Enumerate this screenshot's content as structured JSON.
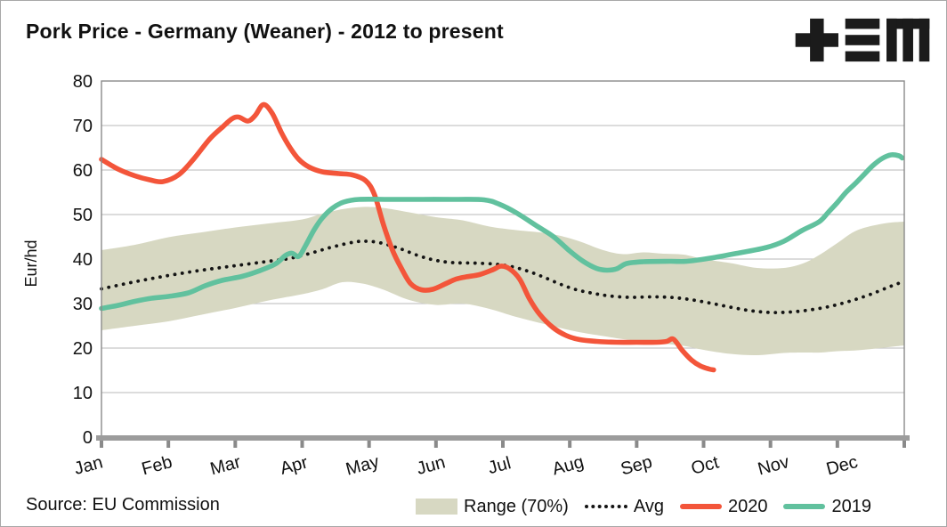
{
  "header": {
    "title": "Pork Price - Germany (Weaner) - 2012 to present",
    "logo_name": "tem-logo"
  },
  "source": {
    "label": "Source: EU Commission"
  },
  "colors": {
    "range_band": "#D7D8C2",
    "avg_line": "#141414",
    "line_2020": "#F3553A",
    "line_2019": "#61C19E",
    "gridline": "#C6C6C6",
    "plot_border": "#8A8A8A",
    "axis_bar": "#9C9C9C",
    "text": "#111111"
  },
  "legend": [
    {
      "label": "Range (70%)",
      "type": "band"
    },
    {
      "label": "Avg",
      "type": "dotted"
    },
    {
      "label": "2020",
      "type": "line"
    },
    {
      "label": "2019",
      "type": "line"
    }
  ],
  "chart_data": {
    "type": "line",
    "title": "Pork Price - Germany (Weaner) - 2012 to present",
    "xlabel": "",
    "ylabel": "Eur/hd",
    "ylim": [
      0,
      80
    ],
    "yticks": [
      0,
      10,
      20,
      30,
      40,
      50,
      60,
      70,
      80
    ],
    "grid": "horizontal",
    "legend_position": "bottom",
    "x_unit": "months, 0 = Jan 1 and 12 = Dec 31",
    "months": [
      "Jan",
      "Feb",
      "Mar",
      "Apr",
      "May",
      "Jun",
      "Jul",
      "Aug",
      "Sep",
      "Oct",
      "Nov",
      "Dec"
    ],
    "band_70pct": {
      "name": "Range (70%)",
      "x": [
        0,
        0.5,
        1.0,
        1.5,
        2.0,
        2.5,
        3.0,
        3.3,
        3.6,
        3.9,
        4.2,
        4.6,
        5.0,
        5.4,
        5.8,
        6.2,
        6.7,
        7.1,
        7.5,
        7.8,
        8.1,
        8.4,
        8.7,
        9.0,
        9.4,
        9.8,
        10.2,
        10.5,
        10.75,
        11.0,
        11.3,
        11.7,
        12.0
      ],
      "upper": [
        42.0,
        43.2,
        44.9,
        46.0,
        47.1,
        48.0,
        48.9,
        50.2,
        51.2,
        51.7,
        51.5,
        50.5,
        49.4,
        48.7,
        47.3,
        46.5,
        45.7,
        44.2,
        42.0,
        41.1,
        41.5,
        41.2,
        41.0,
        40.0,
        39.1,
        38.0,
        38.0,
        39.1,
        41.1,
        43.6,
        46.5,
        48.0,
        48.4
      ],
      "lower": [
        24.0,
        25.0,
        26.0,
        27.5,
        29.0,
        30.7,
        32.1,
        33.2,
        34.8,
        34.5,
        33.2,
        30.8,
        29.7,
        30.0,
        28.8,
        27.0,
        25.1,
        23.7,
        22.7,
        22.0,
        21.5,
        21.0,
        20.5,
        19.6,
        18.7,
        18.4,
        18.9,
        19.0,
        19.0,
        19.3,
        19.5,
        20.1,
        20.6
      ]
    },
    "series": [
      {
        "name": "Avg",
        "style": "dotted",
        "x": [
          0,
          0.5,
          1.0,
          1.5,
          2.0,
          2.5,
          2.8,
          3.1,
          3.4,
          3.7,
          3.9,
          4.15,
          4.45,
          4.75,
          5.0,
          5.25,
          5.55,
          5.85,
          6.1,
          6.35,
          6.6,
          6.85,
          7.1,
          7.35,
          7.6,
          7.9,
          8.2,
          8.5,
          8.8,
          9.1,
          9.4,
          9.7,
          10.0,
          10.3,
          10.6,
          10.9,
          11.2,
          11.5,
          11.8,
          12.0
        ],
        "y": [
          33.3,
          34.9,
          36.3,
          37.5,
          38.5,
          39.5,
          40.1,
          41.2,
          42.5,
          43.6,
          44.0,
          43.7,
          42.4,
          40.7,
          39.7,
          39.2,
          39.1,
          38.9,
          38.4,
          37.4,
          36.0,
          34.4,
          33.1,
          32.3,
          31.7,
          31.4,
          31.5,
          31.4,
          30.9,
          30.1,
          29.2,
          28.4,
          28.0,
          28.1,
          28.6,
          29.4,
          30.6,
          32.1,
          33.9,
          35.0
        ]
      },
      {
        "name": "2020",
        "style": "solid",
        "x": [
          0,
          0.25,
          0.5,
          0.72,
          0.92,
          1.16,
          1.38,
          1.62,
          1.82,
          1.95,
          2.05,
          2.19,
          2.3,
          2.42,
          2.55,
          2.69,
          2.82,
          2.95,
          3.1,
          3.3,
          3.55,
          3.75,
          3.95,
          4.08,
          4.22,
          4.35,
          4.48,
          4.62,
          4.78,
          4.95,
          5.15,
          5.3,
          5.45,
          5.65,
          5.85,
          5.97,
          6.1,
          6.25,
          6.4,
          6.55,
          6.75,
          6.95,
          7.15,
          7.4,
          7.7,
          8.0,
          8.3,
          8.45,
          8.55,
          8.68,
          8.82,
          8.95,
          9.08,
          9.15
        ],
        "y": [
          62.4,
          60.2,
          58.7,
          57.8,
          57.4,
          59.0,
          62.5,
          67.0,
          69.8,
          71.5,
          71.9,
          71.0,
          72.3,
          74.7,
          72.8,
          68.4,
          65.0,
          62.4,
          60.7,
          59.6,
          59.2,
          58.9,
          57.6,
          54.5,
          47.5,
          42.0,
          38.0,
          34.5,
          33.1,
          33.2,
          34.5,
          35.5,
          36.0,
          36.5,
          37.6,
          38.4,
          37.8,
          35.5,
          31.0,
          27.6,
          24.6,
          22.8,
          21.9,
          21.5,
          21.3,
          21.3,
          21.3,
          21.5,
          22.0,
          19.5,
          17.3,
          16.0,
          15.3,
          15.1
        ]
      },
      {
        "name": "2019",
        "style": "solid",
        "x": [
          0,
          0.25,
          0.5,
          0.75,
          1.0,
          1.3,
          1.55,
          1.8,
          2.1,
          2.35,
          2.6,
          2.75,
          2.85,
          2.95,
          3.05,
          3.18,
          3.3,
          3.45,
          3.62,
          3.85,
          4.3,
          4.8,
          5.3,
          5.72,
          5.95,
          6.2,
          6.5,
          6.75,
          7.0,
          7.2,
          7.4,
          7.55,
          7.7,
          7.85,
          8.1,
          8.5,
          8.75,
          9.14,
          9.54,
          9.94,
          10.2,
          10.47,
          10.73,
          10.87,
          11.0,
          11.13,
          11.27,
          11.4,
          11.53,
          11.67,
          11.8,
          11.92,
          11.97
        ],
        "y": [
          28.9,
          29.6,
          30.5,
          31.2,
          31.6,
          32.4,
          34.0,
          35.2,
          36.1,
          37.3,
          38.9,
          40.8,
          41.3,
          40.6,
          43.0,
          46.6,
          49.2,
          51.4,
          52.8,
          53.4,
          53.4,
          53.4,
          53.4,
          53.3,
          52.3,
          50.4,
          47.5,
          45.1,
          41.8,
          39.5,
          37.9,
          37.5,
          37.8,
          39.0,
          39.4,
          39.5,
          39.5,
          40.3,
          41.4,
          42.6,
          44.0,
          46.4,
          48.4,
          50.6,
          52.7,
          55.0,
          57.0,
          59.0,
          61.0,
          62.6,
          63.4,
          63.2,
          62.7
        ]
      }
    ]
  }
}
